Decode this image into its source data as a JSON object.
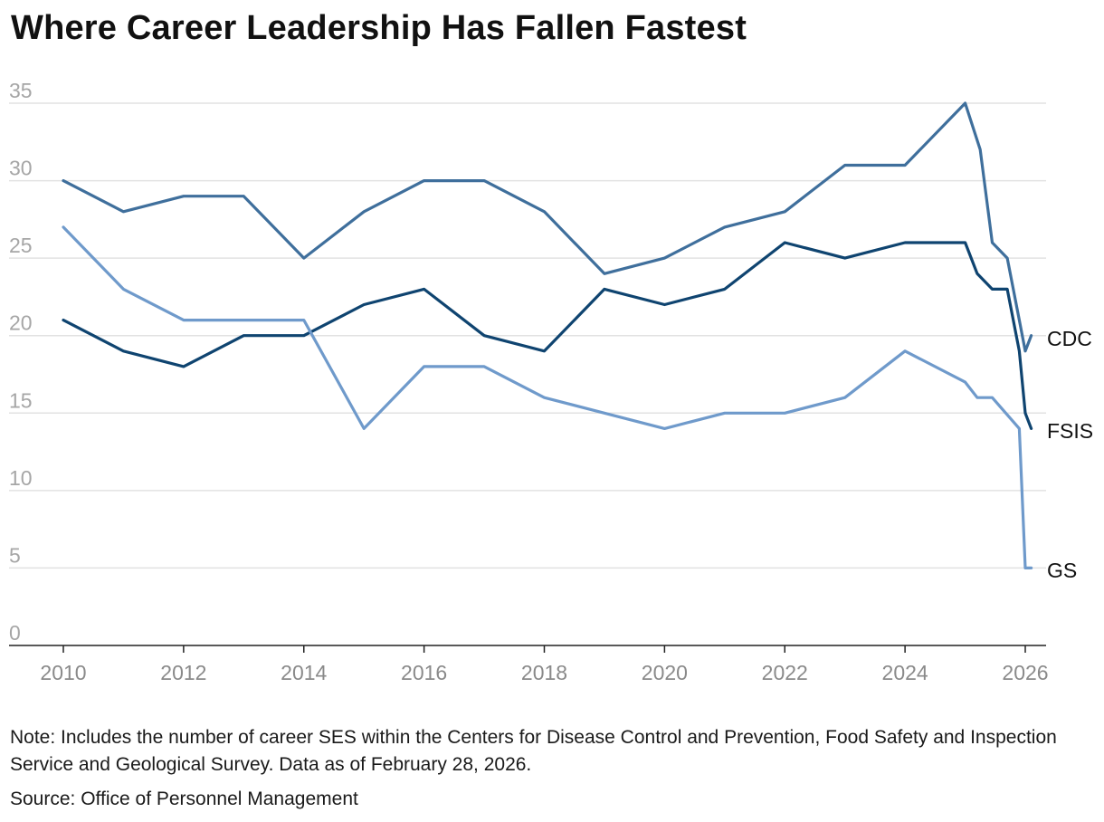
{
  "page": {
    "title": "Where Career Leadership Has Fallen Fastest",
    "note": "Note: Includes the number of career SES within the Centers for Disease Control and Prevention, Food Safety and Inspection Service and Geological Survey. Data as of February 28, 2026.",
    "source": "Source: Office of Personnel Management"
  },
  "chart_data": {
    "type": "line",
    "title": "Where Career Leadership Has Fallen Fastest",
    "xlabel": "",
    "ylabel": "",
    "xlim": [
      2010,
      2026.1
    ],
    "ylim": [
      0,
      35
    ],
    "yticks": [
      0,
      5,
      10,
      15,
      20,
      25,
      30,
      35
    ],
    "xticks": [
      2010,
      2012,
      2014,
      2016,
      2018,
      2020,
      2022,
      2024,
      2026
    ],
    "grid": "horizontal",
    "legend": "direct labels at line ends",
    "series": [
      {
        "name": "CDC",
        "color": "#3f6f9c",
        "points": [
          [
            2010,
            30
          ],
          [
            2011,
            28
          ],
          [
            2012,
            29
          ],
          [
            2013,
            29
          ],
          [
            2014,
            25
          ],
          [
            2015,
            28
          ],
          [
            2016,
            30
          ],
          [
            2017,
            30
          ],
          [
            2018,
            28
          ],
          [
            2019,
            24
          ],
          [
            2020,
            25
          ],
          [
            2021,
            27
          ],
          [
            2022,
            28
          ],
          [
            2023,
            31
          ],
          [
            2024,
            31
          ],
          [
            2025,
            35
          ],
          [
            2025.25,
            32
          ],
          [
            2025.45,
            26
          ],
          [
            2025.7,
            25
          ],
          [
            2025.9,
            21
          ],
          [
            2026,
            19
          ],
          [
            2026.1,
            20
          ]
        ]
      },
      {
        "name": "FSIS",
        "color": "#0f4470",
        "points": [
          [
            2010,
            21
          ],
          [
            2011,
            19
          ],
          [
            2012,
            18
          ],
          [
            2013,
            20
          ],
          [
            2014,
            20
          ],
          [
            2015,
            22
          ],
          [
            2016,
            23
          ],
          [
            2017,
            20
          ],
          [
            2018,
            19
          ],
          [
            2019,
            23
          ],
          [
            2020,
            22
          ],
          [
            2021,
            23
          ],
          [
            2022,
            26
          ],
          [
            2023,
            25
          ],
          [
            2024,
            26
          ],
          [
            2025,
            26
          ],
          [
            2025.2,
            24
          ],
          [
            2025.45,
            23
          ],
          [
            2025.7,
            23
          ],
          [
            2025.9,
            19
          ],
          [
            2026,
            15
          ],
          [
            2026.1,
            14
          ]
        ]
      },
      {
        "name": "GS",
        "color": "#6f9acb",
        "points": [
          [
            2010,
            27
          ],
          [
            2011,
            23
          ],
          [
            2012,
            21
          ],
          [
            2013,
            21
          ],
          [
            2014,
            21
          ],
          [
            2015,
            14
          ],
          [
            2016,
            18
          ],
          [
            2017,
            18
          ],
          [
            2018,
            16
          ],
          [
            2019,
            15
          ],
          [
            2020,
            14
          ],
          [
            2021,
            15
          ],
          [
            2022,
            15
          ],
          [
            2023,
            16
          ],
          [
            2024,
            19
          ],
          [
            2025,
            17
          ],
          [
            2025.2,
            16
          ],
          [
            2025.45,
            16
          ],
          [
            2025.9,
            14
          ],
          [
            2026,
            5
          ],
          [
            2026.1,
            5
          ]
        ]
      }
    ]
  }
}
